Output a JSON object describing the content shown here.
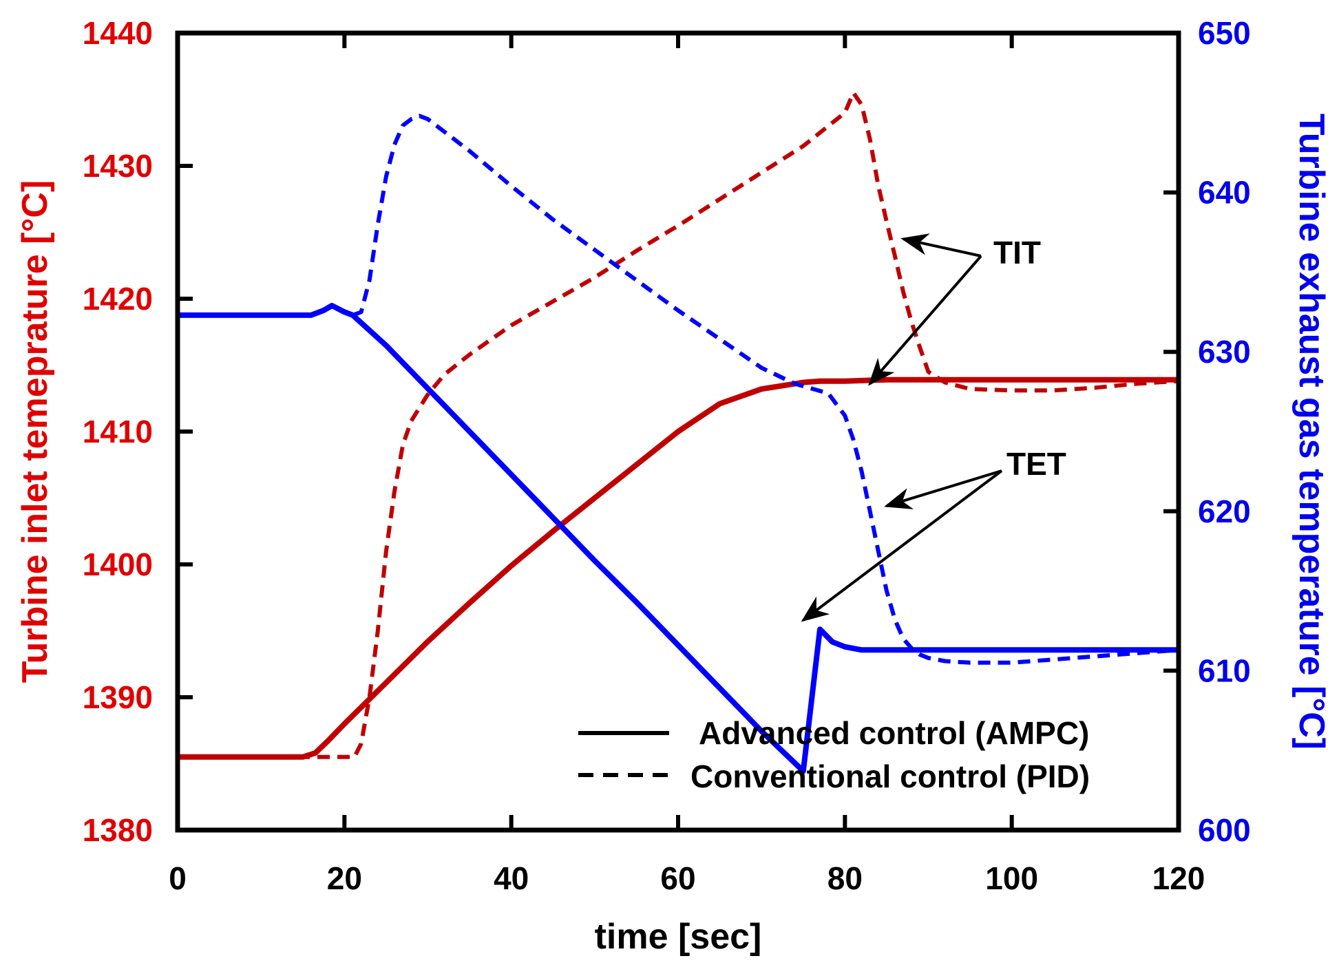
{
  "chart_data": {
    "type": "line",
    "title": "",
    "xlabel": "time [sec]",
    "ylabel_left": "Turbine inlet temeprature [°C]",
    "ylabel_right": "Turbine exhaust gas temperature [°C]",
    "xlim": [
      0,
      120
    ],
    "ylim_left": [
      1380,
      1440
    ],
    "ylim_right": [
      600,
      650
    ],
    "x_ticks": [
      0,
      20,
      40,
      60,
      80,
      100,
      120
    ],
    "x_tick_labels": [
      "0",
      "20",
      "40",
      "60",
      "80",
      "100",
      "120"
    ],
    "y_left_ticks": [
      1380,
      1390,
      1400,
      1410,
      1420,
      1430,
      1440
    ],
    "y_left_tick_labels": [
      "1380",
      "1390",
      "1400",
      "1410",
      "1420",
      "1430",
      "1440"
    ],
    "y_right_ticks": [
      600,
      610,
      620,
      630,
      640,
      650
    ],
    "y_right_tick_labels": [
      "600",
      "610",
      "620",
      "630",
      "640",
      "650"
    ],
    "colors": {
      "tit": "#c00000",
      "tet": "#0000ff",
      "left_axis_text": "#e00000",
      "right_axis_text": "#0000ee",
      "frame": "#000000"
    },
    "legend": {
      "position": "lower-right",
      "entries": [
        {
          "label": "Advanced control (AMPC)",
          "style": "solid"
        },
        {
          "label": "Conventional control (PID)",
          "style": "dashed"
        }
      ]
    },
    "annotations": [
      {
        "text": "TIT",
        "targets": [
          [
            87,
            1424.5
          ],
          [
            83,
            1413.6
          ]
        ]
      },
      {
        "text": "TET",
        "targets": [
          [
            85,
            1404.4
          ],
          [
            75,
            1395.8
          ]
        ]
      }
    ],
    "series": [
      {
        "name": "TIT - Advanced control (AMPC)",
        "axis": "left",
        "style": "solid",
        "color": "#c00000",
        "x": [
          0,
          15,
          16.5,
          18,
          20,
          25,
          30,
          35,
          40,
          45,
          50,
          55,
          60,
          65,
          70,
          75,
          77,
          80,
          85,
          90,
          100,
          110,
          120
        ],
        "y": [
          1385.5,
          1385.5,
          1385.8,
          1386.7,
          1388.0,
          1391.1,
          1394.2,
          1397.1,
          1399.9,
          1402.5,
          1405.0,
          1407.5,
          1410.0,
          1412.1,
          1413.2,
          1413.7,
          1413.8,
          1413.8,
          1413.9,
          1413.9,
          1413.9,
          1413.9,
          1413.9
        ]
      },
      {
        "name": "TIT - Conventional control (PID)",
        "axis": "left",
        "style": "dashed",
        "color": "#c00000",
        "x": [
          0,
          20,
          21.2,
          22,
          23,
          24,
          25,
          26,
          27,
          28,
          30,
          32,
          35,
          40,
          45,
          50,
          55,
          60,
          65,
          70,
          75,
          78,
          80,
          81,
          82,
          83,
          84,
          85,
          86,
          87,
          88,
          89,
          90,
          92,
          95,
          100,
          105,
          110,
          115,
          120
        ],
        "y": [
          1385.5,
          1385.5,
          1385.5,
          1386.5,
          1390.0,
          1395.0,
          1401.0,
          1405.5,
          1409.0,
          1410.8,
          1412.8,
          1414.3,
          1415.8,
          1418.0,
          1419.8,
          1421.6,
          1423.6,
          1425.5,
          1427.5,
          1429.5,
          1431.5,
          1433.0,
          1434.0,
          1435.5,
          1434.6,
          1432.0,
          1428.5,
          1425.8,
          1423.2,
          1420.5,
          1418.2,
          1416.3,
          1414.5,
          1413.7,
          1413.2,
          1413.1,
          1413.1,
          1413.3,
          1413.6,
          1413.8
        ]
      },
      {
        "name": "TET - Advanced control (AMPC)",
        "axis": "right",
        "style": "solid",
        "color": "#0000ff",
        "x": [
          0,
          16,
          17.5,
          18.5,
          20,
          21,
          25,
          30,
          35,
          40,
          45,
          50,
          55,
          60,
          65,
          70,
          75,
          77,
          78.5,
          80,
          82,
          85,
          90,
          100,
          110,
          120
        ],
        "y": [
          632.3,
          632.3,
          632.6,
          632.9,
          632.5,
          632.3,
          630.4,
          627.7,
          625.0,
          622.3,
          619.6,
          616.9,
          614.3,
          611.6,
          608.9,
          606.2,
          603.7,
          612.6,
          611.8,
          611.5,
          611.3,
          611.3,
          611.3,
          611.3,
          611.3,
          611.3
        ]
      },
      {
        "name": "TET - Conventional control (PID)",
        "axis": "right",
        "style": "dashed",
        "color": "#0000ff",
        "x": [
          0,
          16,
          17.5,
          18.5,
          20,
          21,
          22,
          23,
          24,
          25,
          26,
          27,
          28,
          29,
          30,
          32,
          35,
          40,
          45,
          50,
          55,
          60,
          65,
          70,
          74,
          76,
          78,
          80,
          81,
          82,
          83,
          84,
          85,
          86,
          87,
          88,
          89,
          90,
          92,
          95,
          100,
          110,
          120
        ],
        "y": [
          632.3,
          632.3,
          632.6,
          632.9,
          632.5,
          632.3,
          632.5,
          634.5,
          638.0,
          641.0,
          643.0,
          644.2,
          644.6,
          644.8,
          644.6,
          643.8,
          642.6,
          640.4,
          638.3,
          636.4,
          634.5,
          632.6,
          630.8,
          629.0,
          628.0,
          627.7,
          627.4,
          626.0,
          624.5,
          622.5,
          620.0,
          617.5,
          615.0,
          613.2,
          612.0,
          611.4,
          611.0,
          610.8,
          610.6,
          610.5,
          610.5,
          610.9,
          611.3
        ]
      }
    ]
  }
}
